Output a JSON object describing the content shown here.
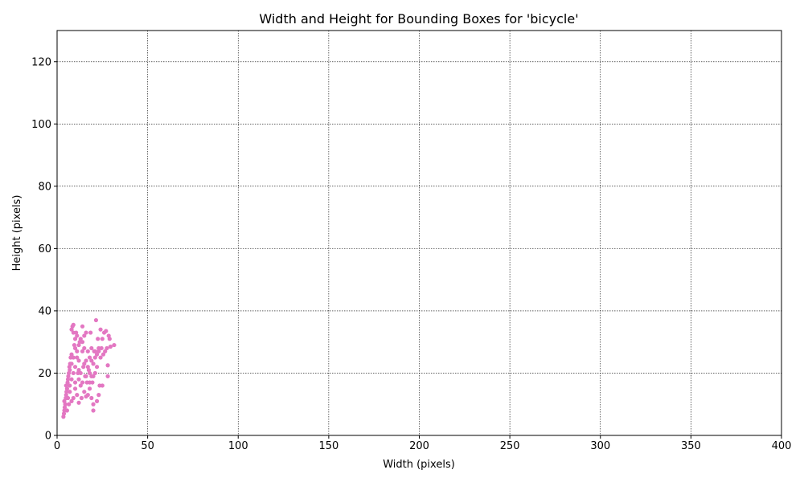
{
  "chart_data": {
    "type": "scatter",
    "title": "Width and Height for Bounding Boxes for 'bicycle'",
    "xlabel": "Width (pixels)",
    "ylabel": "Height (pixels)",
    "color": "#e377c2",
    "grid": true,
    "xlim": [
      0,
      400
    ],
    "ylim": [
      0,
      130
    ],
    "xticks": [
      0,
      50,
      100,
      150,
      200,
      250,
      300,
      350,
      400
    ],
    "yticks": [
      0,
      20,
      40,
      60,
      80,
      100,
      120
    ],
    "x": [
      3.5,
      3.8,
      4,
      4.2,
      4.5,
      4,
      4.8,
      5,
      5.2,
      5.5,
      5,
      5.8,
      6,
      6.2,
      6.5,
      6.8,
      7,
      7.2,
      7.5,
      8,
      8,
      8.5,
      9,
      9,
      9.5,
      10,
      10,
      10.5,
      11,
      11,
      11.5,
      12,
      12,
      12.5,
      13,
      13,
      13.5,
      14,
      14,
      14.5,
      15,
      15,
      15.5,
      16,
      16,
      16.5,
      17,
      17,
      17.5,
      18,
      18,
      18.5,
      19,
      19,
      19.5,
      20,
      20,
      20,
      20.5,
      21,
      21,
      21.5,
      22,
      22,
      22.5,
      23,
      23,
      23.5,
      24,
      24,
      24.5,
      25,
      25,
      25.5,
      26,
      26.5,
      27,
      27.5,
      28,
      28,
      28.5,
      29,
      29.5,
      31.5,
      10,
      9,
      8,
      7,
      11,
      12,
      13,
      14,
      15,
      16,
      17,
      18,
      19,
      20,
      21,
      22,
      23,
      8,
      9,
      10,
      11,
      12,
      6,
      7,
      8,
      9,
      14,
      15,
      16,
      19,
      10,
      12,
      18,
      6.5,
      5.5
    ],
    "y": [
      6,
      7,
      8,
      9,
      10,
      11,
      12,
      13,
      14,
      15,
      16,
      17,
      18,
      19,
      20,
      22,
      21,
      23,
      25,
      26,
      34,
      35,
      35.5,
      33,
      29,
      28,
      31,
      33,
      32,
      25,
      20,
      18,
      24,
      30,
      31,
      16,
      12,
      35,
      27,
      22,
      14,
      28,
      19,
      24,
      33,
      17,
      27,
      13,
      21,
      15,
      25,
      33,
      19,
      28,
      17,
      8,
      10,
      23,
      27,
      20,
      25,
      37,
      22,
      11,
      31,
      13,
      27,
      16,
      34,
      25,
      28,
      16,
      31,
      26,
      33,
      27,
      33.5,
      28,
      19,
      22.5,
      32,
      31,
      28.5,
      29,
      15,
      12,
      11,
      14,
      13,
      10.5,
      20,
      17,
      23,
      19,
      22,
      17,
      24,
      19,
      27,
      26,
      28,
      18,
      20,
      22,
      27,
      29,
      12,
      16,
      23,
      25,
      30,
      32,
      12.5,
      12,
      17,
      21,
      20,
      10,
      8
    ]
  }
}
